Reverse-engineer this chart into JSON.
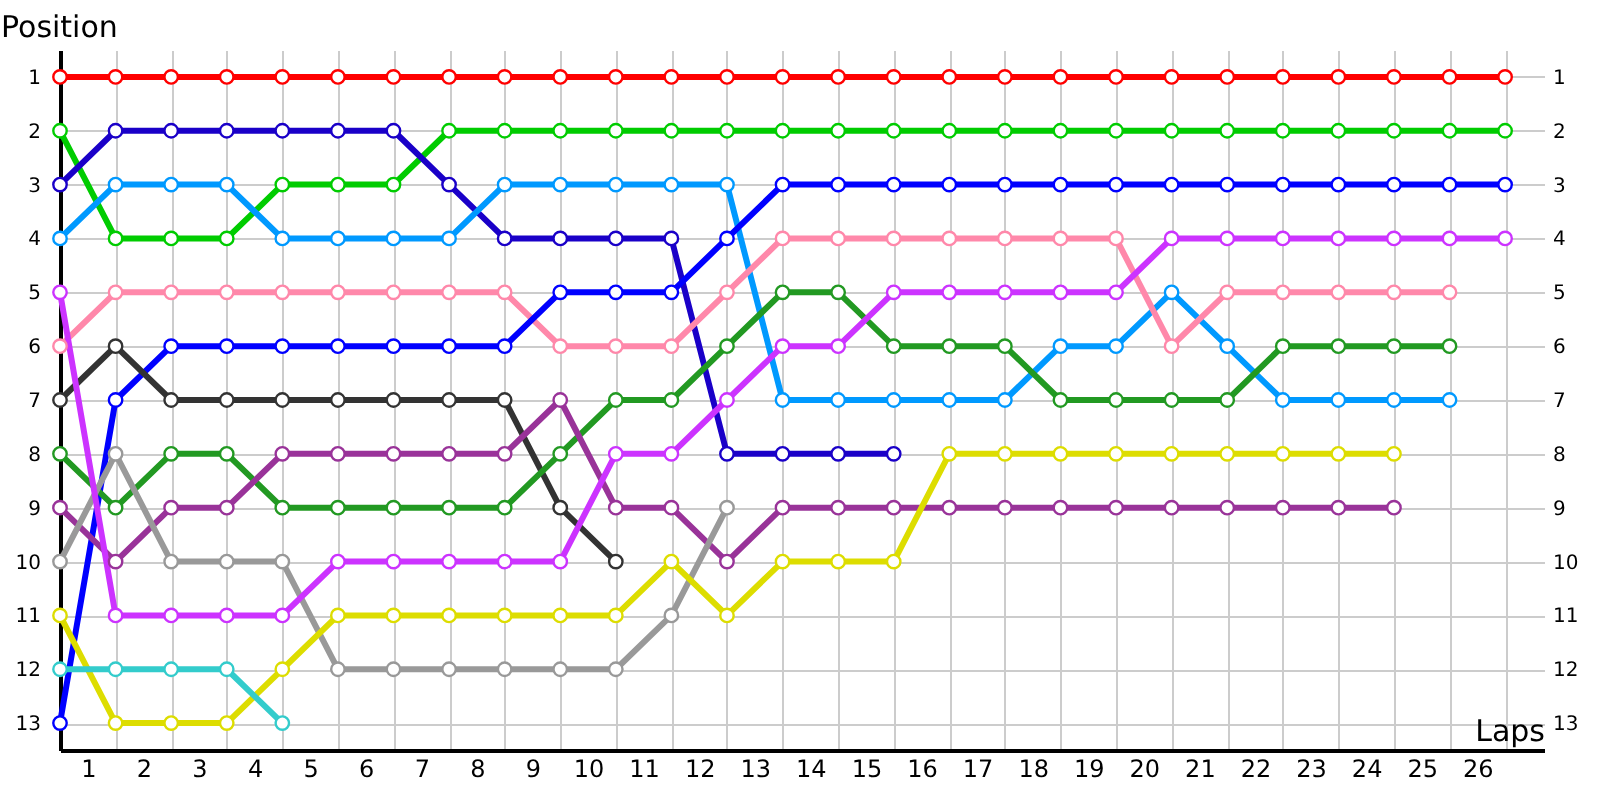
{
  "chart_data": {
    "type": "line",
    "xlabel": "Laps",
    "ylabel": "Position",
    "x": [
      0,
      1,
      2,
      3,
      4,
      5,
      6,
      7,
      8,
      9,
      10,
      11,
      12,
      13,
      14,
      15,
      16,
      17,
      18,
      19,
      20,
      21,
      22,
      23,
      24,
      25,
      26
    ],
    "xlim": [
      0,
      26.7
    ],
    "xticks": [
      {
        "value": 0,
        "label": null
      },
      {
        "value": 1,
        "label": null
      },
      {
        "value": 2,
        "label": null
      },
      {
        "value": 3,
        "label": null
      },
      {
        "value": 4,
        "label": null
      },
      {
        "value": 5,
        "label": null
      },
      {
        "value": 6,
        "label": null
      },
      {
        "value": 7,
        "label": null
      },
      {
        "value": 8,
        "label": null
      },
      {
        "value": 9,
        "label": null
      },
      {
        "value": 10,
        "label": null
      },
      {
        "value": 11,
        "label": null
      },
      {
        "value": 12,
        "label": null
      },
      {
        "value": 13,
        "label": null
      },
      {
        "value": 14,
        "label": null
      },
      {
        "value": 15,
        "label": null
      },
      {
        "value": 16,
        "label": null
      },
      {
        "value": 17,
        "label": null
      },
      {
        "value": 18,
        "label": null
      },
      {
        "value": 19,
        "label": null
      },
      {
        "value": 20,
        "label": null
      },
      {
        "value": 21,
        "label": null
      },
      {
        "value": 22,
        "label": null
      },
      {
        "value": 23,
        "label": null
      },
      {
        "value": 24,
        "label": null
      },
      {
        "value": 25,
        "label": null
      },
      {
        "value": 26,
        "label": null
      },
      {
        "value": 0.5,
        "label": "1"
      },
      {
        "value": 1.5,
        "label": "2"
      },
      {
        "value": 2.5,
        "label": "3"
      },
      {
        "value": 3.5,
        "label": "4"
      },
      {
        "value": 4.5,
        "label": "5"
      },
      {
        "value": 5.5,
        "label": "6"
      },
      {
        "value": 6.5,
        "label": "7"
      },
      {
        "value": 7.5,
        "label": "8"
      },
      {
        "value": 8.5,
        "label": "9"
      },
      {
        "value": 9.5,
        "label": "10"
      },
      {
        "value": 10.5,
        "label": "11"
      },
      {
        "value": 11.5,
        "label": "12"
      },
      {
        "value": 12.5,
        "label": "13"
      },
      {
        "value": 13.5,
        "label": "14"
      },
      {
        "value": 14.5,
        "label": "15"
      },
      {
        "value": 15.5,
        "label": "16"
      },
      {
        "value": 16.5,
        "label": "17"
      },
      {
        "value": 17.5,
        "label": "18"
      },
      {
        "value": 18.5,
        "label": "19"
      },
      {
        "value": 19.5,
        "label": "20"
      },
      {
        "value": 20.5,
        "label": "21"
      },
      {
        "value": 21.5,
        "label": "22"
      },
      {
        "value": 22.5,
        "label": "23"
      },
      {
        "value": 23.5,
        "label": "24"
      },
      {
        "value": 24.5,
        "label": "25"
      },
      {
        "value": 25.5,
        "label": "26"
      }
    ],
    "ylim": [
      13.5,
      0.5
    ],
    "yticks": [
      1,
      2,
      3,
      4,
      5,
      6,
      7,
      8,
      9,
      10,
      11,
      12,
      13
    ],
    "y2lim": [
      13.5,
      0.5
    ],
    "y2ticks": [
      1,
      2,
      3,
      4,
      5,
      6,
      7,
      8,
      9,
      10,
      11,
      12,
      13
    ],
    "grid": true,
    "legend": false,
    "marker": "circle",
    "line_style": "solid",
    "series": [
      {
        "color": "#ff0000",
        "values": [
          1,
          1,
          1,
          1,
          1,
          1,
          1,
          1,
          1,
          1,
          1,
          1,
          1,
          1,
          1,
          1,
          1,
          1,
          1,
          1,
          1,
          1,
          1,
          1,
          1,
          1,
          1
        ]
      },
      {
        "color": "#00cc00",
        "values": [
          2,
          4,
          4,
          4,
          3,
          3,
          3,
          2,
          2,
          2,
          2,
          2,
          2,
          2,
          2,
          2,
          2,
          2,
          2,
          2,
          2,
          2,
          2,
          2,
          2,
          2,
          2
        ]
      },
      {
        "color": "#1a00c8",
        "values": [
          3,
          2,
          2,
          2,
          2,
          2,
          2,
          3,
          4,
          4,
          4,
          4,
          8,
          8,
          8,
          8,
          null,
          null,
          null,
          null,
          null,
          null,
          null,
          null,
          null,
          null,
          null
        ]
      },
      {
        "color": "#0099ff",
        "values": [
          4,
          3,
          3,
          3,
          4,
          4,
          4,
          4,
          3,
          3,
          3,
          3,
          3,
          7,
          7,
          7,
          7,
          7,
          6,
          6,
          5,
          6,
          7,
          7,
          7,
          7,
          null
        ]
      },
      {
        "color": "#ff88aa",
        "values": [
          6,
          5,
          5,
          5,
          5,
          5,
          5,
          5,
          5,
          6,
          6,
          6,
          5,
          4,
          4,
          4,
          4,
          4,
          4,
          4,
          6,
          5,
          5,
          5,
          5,
          5,
          null
        ]
      },
      {
        "color": "#0000ff",
        "values": [
          13,
          7,
          6,
          6,
          6,
          6,
          6,
          6,
          6,
          5,
          5,
          5,
          4,
          3,
          3,
          3,
          3,
          3,
          3,
          3,
          3,
          3,
          3,
          3,
          3,
          3,
          3
        ]
      },
      {
        "color": "#333333",
        "values": [
          7,
          6,
          7,
          7,
          7,
          7,
          7,
          7,
          7,
          9,
          10,
          null,
          null,
          null,
          null,
          null,
          null,
          null,
          null,
          null,
          null,
          null,
          null,
          null,
          null,
          null,
          null
        ]
      },
      {
        "color": "#229922",
        "values": [
          8,
          9,
          8,
          8,
          9,
          9,
          9,
          9,
          9,
          8,
          7,
          7,
          6,
          5,
          5,
          6,
          6,
          6,
          7,
          7,
          7,
          7,
          6,
          6,
          6,
          6,
          null
        ]
      },
      {
        "color": "#993399",
        "values": [
          9,
          10,
          9,
          9,
          8,
          8,
          8,
          8,
          8,
          7,
          9,
          9,
          10,
          9,
          9,
          9,
          9,
          9,
          9,
          9,
          9,
          9,
          9,
          9,
          9,
          null,
          null
        ]
      },
      {
        "color": "#999999",
        "values": [
          10,
          8,
          10,
          10,
          10,
          12,
          12,
          12,
          12,
          12,
          12,
          11,
          9,
          null,
          null,
          null,
          null,
          null,
          null,
          null,
          null,
          null,
          null,
          null,
          null,
          null,
          null
        ]
      },
      {
        "color": "#cc33ff",
        "values": [
          5,
          11,
          11,
          11,
          11,
          10,
          10,
          10,
          10,
          10,
          8,
          8,
          7,
          6,
          6,
          5,
          5,
          5,
          5,
          5,
          4,
          4,
          4,
          4,
          4,
          4,
          4
        ]
      },
      {
        "color": "#dddd00",
        "values": [
          11,
          13,
          13,
          13,
          12,
          11,
          11,
          11,
          11,
          11,
          11,
          10,
          11,
          10,
          10,
          10,
          8,
          8,
          8,
          8,
          8,
          8,
          8,
          8,
          8,
          null,
          null
        ]
      },
      {
        "color": "#33cccc",
        "values": [
          12,
          12,
          12,
          12,
          13,
          null,
          null,
          null,
          null,
          null,
          null,
          null,
          null,
          null,
          null,
          null,
          null,
          null,
          null,
          null,
          null,
          null,
          null,
          null,
          null,
          null,
          null
        ]
      }
    ]
  }
}
